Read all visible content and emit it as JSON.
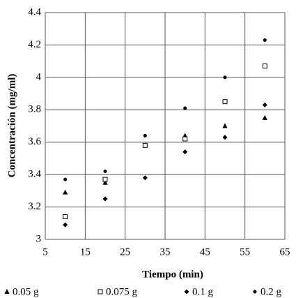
{
  "chart_data": {
    "type": "scatter",
    "x_label": "Tiempo (min)",
    "y_label": "Concentración (mg/ml)",
    "x": [
      10,
      20,
      30,
      40,
      50,
      60
    ],
    "series": [
      {
        "name": "0.05 g",
        "marker": "triangle",
        "color": "#000000",
        "values": [
          3.29,
          3.35,
          3.58,
          3.64,
          3.7,
          3.75
        ]
      },
      {
        "name": "0.075 g",
        "marker": "square",
        "color": "#000000",
        "values": [
          3.14,
          3.37,
          3.58,
          3.62,
          3.85,
          4.07
        ]
      },
      {
        "name": "0.1 g",
        "marker": "diamond",
        "color": "#000000",
        "values": [
          3.09,
          3.25,
          3.38,
          3.54,
          3.63,
          3.83
        ]
      },
      {
        "name": "0.2 g",
        "marker": "circle",
        "color": "#000000",
        "values": [
          3.37,
          3.42,
          3.64,
          3.81,
          4.0,
          4.23
        ]
      }
    ],
    "xlim": [
      5,
      65
    ],
    "xticks": [
      5,
      15,
      25,
      35,
      45,
      55,
      65
    ],
    "ylim": [
      3,
      4.4
    ],
    "yticks": [
      3,
      3.2,
      3.4,
      3.6,
      3.8,
      4,
      4.2,
      4.4
    ],
    "grid": true
  }
}
